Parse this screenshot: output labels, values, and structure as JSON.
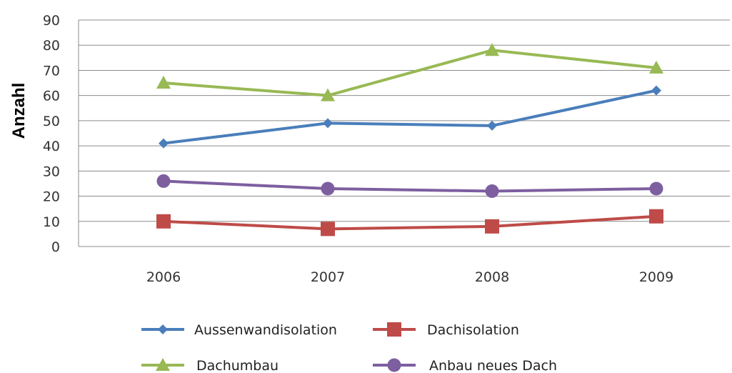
{
  "chart_data": {
    "type": "line",
    "title": "",
    "xlabel": "",
    "ylabel": "Anzahl",
    "categories": [
      "2006",
      "2007",
      "2008",
      "2009"
    ],
    "ylim": [
      0,
      90
    ],
    "yticks": [
      0,
      10,
      20,
      30,
      40,
      50,
      60,
      70,
      80,
      90
    ],
    "grid": true,
    "legend_position": "bottom",
    "series": [
      {
        "name": "Aussenwandisolation",
        "values": [
          41,
          49,
          48,
          62
        ],
        "color": "#4a7ebb",
        "marker": "diamond"
      },
      {
        "name": "Dachisolation",
        "values": [
          10,
          7,
          8,
          12
        ],
        "color": "#be4b48",
        "marker": "square"
      },
      {
        "name": "Dachumbau",
        "values": [
          65,
          60,
          78,
          71
        ],
        "color": "#98b954",
        "marker": "triangle"
      },
      {
        "name": "Anbau neues Dach",
        "values": [
          26,
          23,
          22,
          23
        ],
        "color": "#7d5fa0",
        "marker": "circle"
      }
    ]
  }
}
